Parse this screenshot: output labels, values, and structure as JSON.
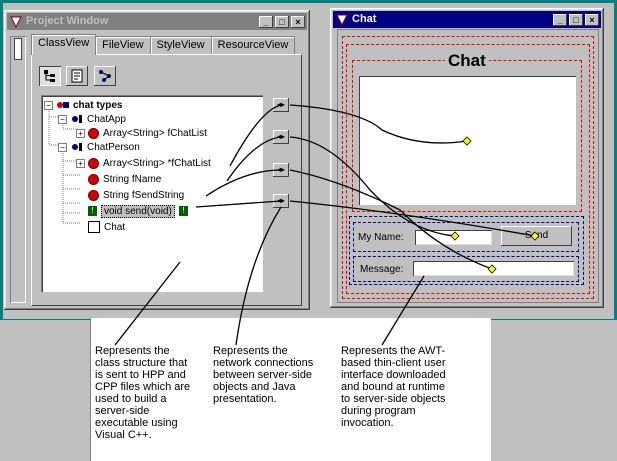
{
  "project_window": {
    "title": "Project Window",
    "tabs": [
      "ClassView",
      "FileView",
      "StyleView",
      "ResourceView"
    ],
    "selected_tab": "ClassView"
  },
  "class_tree": {
    "root": "chat types",
    "app": "ChatApp",
    "app_member": "Array<String> fChatList",
    "person": "ChatPerson",
    "person_members": [
      "Array<String> *fChatList",
      "String fName",
      "String fSendString",
      "void send(void)"
    ],
    "chat_window": "Chat"
  },
  "chat_window": {
    "title": "Chat",
    "heading": "Chat",
    "name_label": "My Name:",
    "message_label": "Message:",
    "send_label": "Send"
  },
  "captions": {
    "left": "Represents the class structure that is sent to HPP and CPP files which are used to build a server-side executable using Visual C++.",
    "middle": "Represents the network connections between server-side objects and Java presentation.",
    "right": "Represents the AWT-based thin-client user interface downloaded and bound at runtime to server-side objects during program invocation."
  },
  "colors": {
    "frame": "#008080",
    "active_title": "#000080",
    "inactive_title": "#808080",
    "outline_red": "#e00000",
    "outline_blue": "#000080",
    "member_dot": "#d00000",
    "connector_diamond": "#ffff00"
  }
}
